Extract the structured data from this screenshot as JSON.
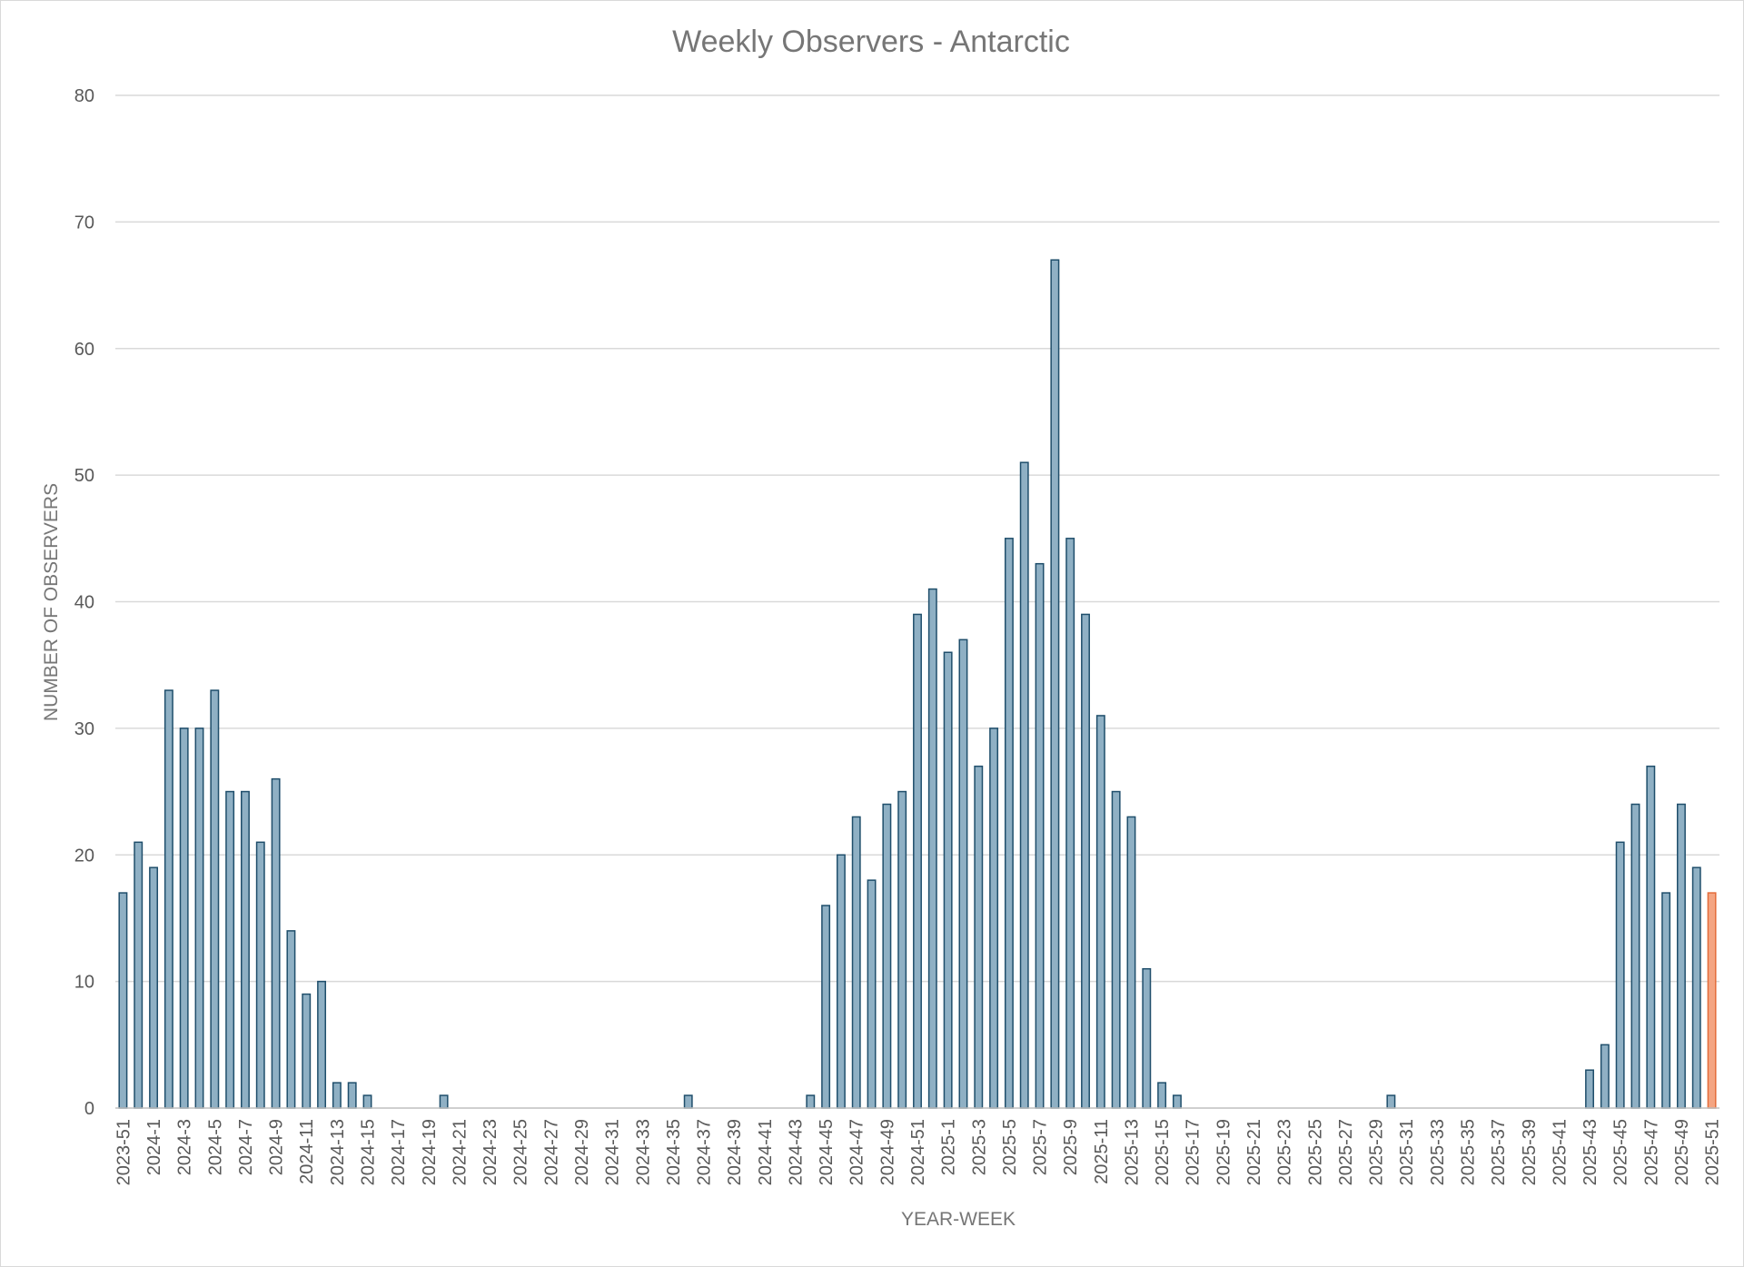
{
  "chart_data": {
    "type": "bar",
    "title": "Weekly Observers - Antarctic",
    "xlabel": "YEAR-WEEK",
    "ylabel": "NUMBER OF OBSERVERS",
    "ylim": [
      0,
      80
    ],
    "ytick_step": 10,
    "grid": true,
    "legend": "none",
    "colors": {
      "bar_fill": "#8fb0c4",
      "bar_stroke": "#1f4e6b",
      "highlight_fill": "#f4a582",
      "highlight_stroke": "#e46c3a"
    },
    "highlight_category": "2025-51",
    "categories": [
      "2023-51",
      "2023-52",
      "2024-1",
      "2024-2",
      "2024-3",
      "2024-4",
      "2024-5",
      "2024-6",
      "2024-7",
      "2024-8",
      "2024-9",
      "2024-10",
      "2024-11",
      "2024-12",
      "2024-13",
      "2024-14",
      "2024-15",
      "2024-16",
      "2024-17",
      "2024-18",
      "2024-19",
      "2024-20",
      "2024-21",
      "2024-22",
      "2024-23",
      "2024-24",
      "2024-25",
      "2024-26",
      "2024-27",
      "2024-28",
      "2024-29",
      "2024-30",
      "2024-31",
      "2024-32",
      "2024-33",
      "2024-34",
      "2024-35",
      "2024-36",
      "2024-37",
      "2024-38",
      "2024-39",
      "2024-40",
      "2024-41",
      "2024-42",
      "2024-43",
      "2024-44",
      "2024-45",
      "2024-46",
      "2024-47",
      "2024-48",
      "2024-49",
      "2024-50",
      "2024-51",
      "2024-52",
      "2025-1",
      "2025-2",
      "2025-3",
      "2025-4",
      "2025-5",
      "2025-6",
      "2025-7",
      "2025-8",
      "2025-9",
      "2025-10",
      "2025-11",
      "2025-12",
      "2025-13",
      "2025-14",
      "2025-15",
      "2025-16",
      "2025-17",
      "2025-18",
      "2025-19",
      "2025-20",
      "2025-21",
      "2025-22",
      "2025-23",
      "2025-24",
      "2025-25",
      "2025-26",
      "2025-27",
      "2025-28",
      "2025-29",
      "2025-30",
      "2025-31",
      "2025-32",
      "2025-33",
      "2025-34",
      "2025-35",
      "2025-36",
      "2025-37",
      "2025-38",
      "2025-39",
      "2025-40",
      "2025-41",
      "2025-42",
      "2025-43",
      "2025-44",
      "2025-45",
      "2025-46",
      "2025-47",
      "2025-48",
      "2025-49",
      "2025-50",
      "2025-51"
    ],
    "values": [
      17,
      21,
      19,
      33,
      30,
      30,
      33,
      25,
      25,
      21,
      26,
      14,
      9,
      10,
      2,
      2,
      1,
      0,
      0,
      0,
      0,
      1,
      0,
      0,
      0,
      0,
      0,
      0,
      0,
      0,
      0,
      0,
      0,
      0,
      0,
      0,
      0,
      1,
      0,
      0,
      0,
      0,
      0,
      0,
      0,
      1,
      16,
      20,
      23,
      18,
      24,
      25,
      39,
      41,
      36,
      37,
      27,
      30,
      45,
      51,
      43,
      67,
      45,
      39,
      31,
      25,
      23,
      11,
      2,
      1,
      0,
      0,
      0,
      0,
      0,
      0,
      0,
      0,
      0,
      0,
      0,
      0,
      0,
      1,
      0,
      0,
      0,
      0,
      0,
      0,
      0,
      0,
      0,
      0,
      0,
      0,
      3,
      5,
      21,
      24,
      27,
      17,
      24,
      19,
      17
    ],
    "x_tick_labels": [
      "2023-51",
      "2024-1",
      "2024-3",
      "2024-5",
      "2024-7",
      "2024-9",
      "2024-11",
      "2024-13",
      "2024-15",
      "2024-17",
      "2024-19",
      "2024-21",
      "2024-23",
      "2024-25",
      "2024-27",
      "2024-29",
      "2024-31",
      "2024-33",
      "2024-35",
      "2024-37",
      "2024-39",
      "2024-41",
      "2024-43",
      "2024-45",
      "2024-47",
      "2024-49",
      "2024-51",
      "2025-1",
      "2025-3",
      "2025-5",
      "2025-7",
      "2025-9",
      "2025-11",
      "2025-13",
      "2025-15",
      "2025-17",
      "2025-19",
      "2025-21",
      "2025-23",
      "2025-25",
      "2025-27",
      "2025-29",
      "2025-31",
      "2025-33",
      "2025-35",
      "2025-37",
      "2025-39",
      "2025-41",
      "2025-43",
      "2025-45",
      "2025-47",
      "2025-49",
      "2025-51"
    ],
    "y_tick_labels": [
      "0",
      "10",
      "20",
      "30",
      "40",
      "50",
      "60",
      "70",
      "80"
    ]
  }
}
